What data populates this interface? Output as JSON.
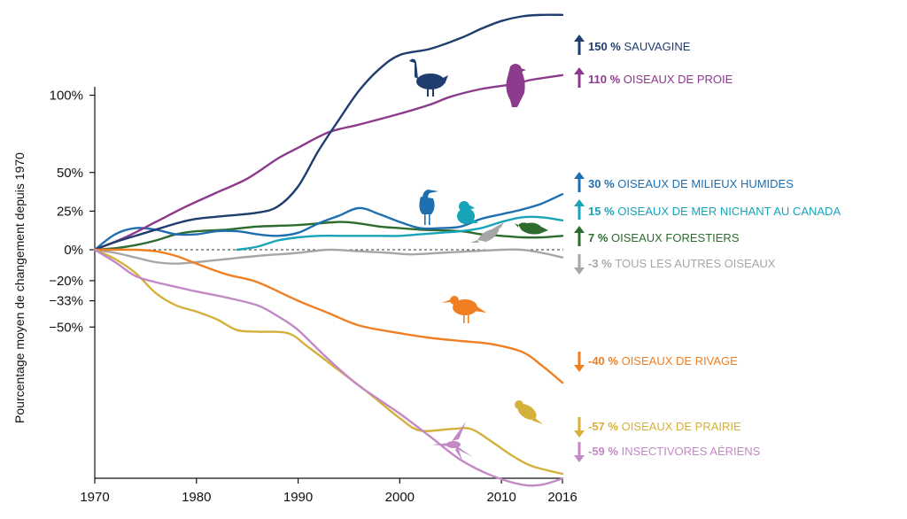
{
  "chart_data": {
    "type": "line",
    "ylabel": "Pourcentage moyen de changement depuis 1970",
    "xlim": [
      1970,
      2016
    ],
    "x_ticks": [
      "1970",
      "1980",
      "1990",
      "2000",
      "2010",
      "2016"
    ],
    "y_ticks": [
      {
        "v": 100,
        "label": "100%"
      },
      {
        "v": 50,
        "label": "50%"
      },
      {
        "v": 25,
        "label": "25%"
      },
      {
        "v": 0,
        "label": "0%"
      },
      {
        "v": -20,
        "label": "−20%"
      },
      {
        "v": -33,
        "label": "−33%"
      },
      {
        "v": -50,
        "label": "−50%"
      }
    ],
    "series": [
      {
        "name": "SAUVAGINE",
        "pct": "150 %",
        "dir": "up",
        "color": "#1f3d6e",
        "points": [
          [
            1970,
            0
          ],
          [
            1972,
            5
          ],
          [
            1975,
            11
          ],
          [
            1978,
            17
          ],
          [
            1980,
            20
          ],
          [
            1983,
            22
          ],
          [
            1986,
            24
          ],
          [
            1988,
            28
          ],
          [
            1990,
            41
          ],
          [
            1992,
            64
          ],
          [
            1994,
            84
          ],
          [
            1996,
            103
          ],
          [
            1998,
            117
          ],
          [
            2000,
            126
          ],
          [
            2003,
            130
          ],
          [
            2006,
            137
          ],
          [
            2008,
            143
          ],
          [
            2010,
            148
          ],
          [
            2012,
            151
          ],
          [
            2014,
            152
          ],
          [
            2016,
            152
          ]
        ]
      },
      {
        "name": "OISEAUX DE PROIE",
        "pct": "110 %",
        "dir": "up",
        "color": "#8b3a8c",
        "points": [
          [
            1970,
            0
          ],
          [
            1973,
            8
          ],
          [
            1976,
            18
          ],
          [
            1979,
            28
          ],
          [
            1982,
            37
          ],
          [
            1985,
            46
          ],
          [
            1988,
            59
          ],
          [
            1990,
            66
          ],
          [
            1993,
            76
          ],
          [
            1996,
            81
          ],
          [
            2000,
            88
          ],
          [
            2003,
            94
          ],
          [
            2005,
            99
          ],
          [
            2008,
            104
          ],
          [
            2011,
            107
          ],
          [
            2013,
            110
          ],
          [
            2016,
            113
          ]
        ]
      },
      {
        "name": "OISEAUX DE MILIEUX HUMIDES",
        "pct": "30 %",
        "dir": "up",
        "color": "#1f6fb0",
        "points": [
          [
            1970,
            0
          ],
          [
            1972,
            10
          ],
          [
            1974,
            14
          ],
          [
            1976,
            13
          ],
          [
            1978,
            10
          ],
          [
            1980,
            10
          ],
          [
            1982,
            12
          ],
          [
            1984,
            12
          ],
          [
            1986,
            10
          ],
          [
            1988,
            9
          ],
          [
            1990,
            11
          ],
          [
            1992,
            17
          ],
          [
            1994,
            22
          ],
          [
            1996,
            27
          ],
          [
            1998,
            23
          ],
          [
            2000,
            18
          ],
          [
            2002,
            14
          ],
          [
            2004,
            14
          ],
          [
            2006,
            15
          ],
          [
            2008,
            20
          ],
          [
            2010,
            23
          ],
          [
            2012,
            26
          ],
          [
            2014,
            30
          ],
          [
            2016,
            36
          ]
        ]
      },
      {
        "name": "OISEAUX DE MER NICHANT AU CANADA",
        "pct": "15 %",
        "dir": "up",
        "color": "#17a4b8",
        "points": [
          [
            1984,
            0
          ],
          [
            1986,
            2
          ],
          [
            1988,
            6
          ],
          [
            1990,
            8
          ],
          [
            1992,
            9
          ],
          [
            1994,
            9
          ],
          [
            1996,
            9
          ],
          [
            1998,
            9
          ],
          [
            2000,
            9
          ],
          [
            2002,
            10
          ],
          [
            2004,
            11
          ],
          [
            2006,
            12
          ],
          [
            2008,
            14
          ],
          [
            2010,
            18
          ],
          [
            2012,
            21
          ],
          [
            2014,
            21
          ],
          [
            2016,
            19
          ]
        ]
      },
      {
        "name": "OISEAUX FORESTIERS",
        "pct": "7 %",
        "dir": "up",
        "color": "#2e6b2e",
        "points": [
          [
            1970,
            0
          ],
          [
            1972,
            1
          ],
          [
            1974,
            3
          ],
          [
            1976,
            6
          ],
          [
            1978,
            10
          ],
          [
            1980,
            12
          ],
          [
            1983,
            13
          ],
          [
            1986,
            15
          ],
          [
            1990,
            16
          ],
          [
            1994,
            18
          ],
          [
            1996,
            17
          ],
          [
            1998,
            15
          ],
          [
            2000,
            14
          ],
          [
            2002,
            13
          ],
          [
            2006,
            12
          ],
          [
            2008,
            10
          ],
          [
            2010,
            9
          ],
          [
            2012,
            8
          ],
          [
            2014,
            8
          ],
          [
            2016,
            9
          ]
        ]
      },
      {
        "name": "TOUS LES AUTRES OISEAUX",
        "pct": "-3 %",
        "dir": "down",
        "color": "#a6a6a6",
        "points": [
          [
            1970,
            0
          ],
          [
            1972,
            -2
          ],
          [
            1974,
            -5
          ],
          [
            1976,
            -8
          ],
          [
            1978,
            -9
          ],
          [
            1980,
            -8
          ],
          [
            1983,
            -6
          ],
          [
            1986,
            -4
          ],
          [
            1990,
            -2
          ],
          [
            1993,
            0
          ],
          [
            1996,
            -1
          ],
          [
            1999,
            -2
          ],
          [
            2001,
            -3
          ],
          [
            2004,
            -2
          ],
          [
            2007,
            -1
          ],
          [
            2010,
            0
          ],
          [
            2012,
            0
          ],
          [
            2014,
            -2
          ],
          [
            2016,
            -5
          ]
        ]
      },
      {
        "name": "OISEAUX DE RIVAGE",
        "pct": "-40 %",
        "dir": "down",
        "color": "#f07f22",
        "points": [
          [
            1970,
            0
          ],
          [
            1974,
            0
          ],
          [
            1976,
            -1
          ],
          [
            1978,
            -4
          ],
          [
            1980,
            -9
          ],
          [
            1983,
            -16
          ],
          [
            1986,
            -21
          ],
          [
            1990,
            -33
          ],
          [
            1993,
            -41
          ],
          [
            1996,
            -49
          ],
          [
            2000,
            -54
          ],
          [
            2003,
            -57
          ],
          [
            2006,
            -59
          ],
          [
            2009,
            -61
          ],
          [
            2012,
            -66
          ],
          [
            2014,
            -75
          ],
          [
            2016,
            -86
          ]
        ]
      },
      {
        "name": "OISEAUX DE PRAIRIE",
        "pct": "-57 %",
        "dir": "down",
        "color": "#d4b13a",
        "points": [
          [
            1970,
            0
          ],
          [
            1972,
            -6
          ],
          [
            1974,
            -15
          ],
          [
            1976,
            -28
          ],
          [
            1978,
            -36
          ],
          [
            1980,
            -40
          ],
          [
            1982,
            -45
          ],
          [
            1984,
            -52
          ],
          [
            1986,
            -53
          ],
          [
            1989,
            -54
          ],
          [
            1991,
            -63
          ],
          [
            1994,
            -78
          ],
          [
            1997,
            -93
          ],
          [
            2000,
            -109
          ],
          [
            2002,
            -117
          ],
          [
            2005,
            -116
          ],
          [
            2007,
            -116
          ],
          [
            2009,
            -124
          ],
          [
            2011,
            -133
          ],
          [
            2013,
            -140
          ],
          [
            2016,
            -145
          ]
        ]
      },
      {
        "name": "INSECTIVORES AÉRIENS",
        "pct": "-59 %",
        "dir": "down",
        "color": "#c389c6",
        "points": [
          [
            1970,
            0
          ],
          [
            1972,
            -8
          ],
          [
            1974,
            -17
          ],
          [
            1976,
            -21
          ],
          [
            1978,
            -24
          ],
          [
            1980,
            -27
          ],
          [
            1983,
            -31
          ],
          [
            1986,
            -36
          ],
          [
            1988,
            -43
          ],
          [
            1990,
            -52
          ],
          [
            1993,
            -71
          ],
          [
            1996,
            -88
          ],
          [
            2000,
            -106
          ],
          [
            2003,
            -121
          ],
          [
            2006,
            -136
          ],
          [
            2009,
            -146
          ],
          [
            2012,
            -152
          ],
          [
            2014,
            -152
          ],
          [
            2016,
            -148
          ]
        ]
      }
    ],
    "icons": [
      {
        "name": "goose-icon",
        "color": "#1f3d6e"
      },
      {
        "name": "raptor-icon",
        "color": "#8b3a8c"
      },
      {
        "name": "heron-icon",
        "color": "#1f6fb0"
      },
      {
        "name": "puffin-icon",
        "color": "#17a4b8"
      },
      {
        "name": "songbird-icon",
        "color": "#2e6b2e"
      },
      {
        "name": "gray-bird-icon",
        "color": "#a6a6a6"
      },
      {
        "name": "shorebird-icon",
        "color": "#f07f22"
      },
      {
        "name": "meadowlark-icon",
        "color": "#d4b13a"
      },
      {
        "name": "swallow-icon",
        "color": "#c389c6"
      }
    ]
  }
}
